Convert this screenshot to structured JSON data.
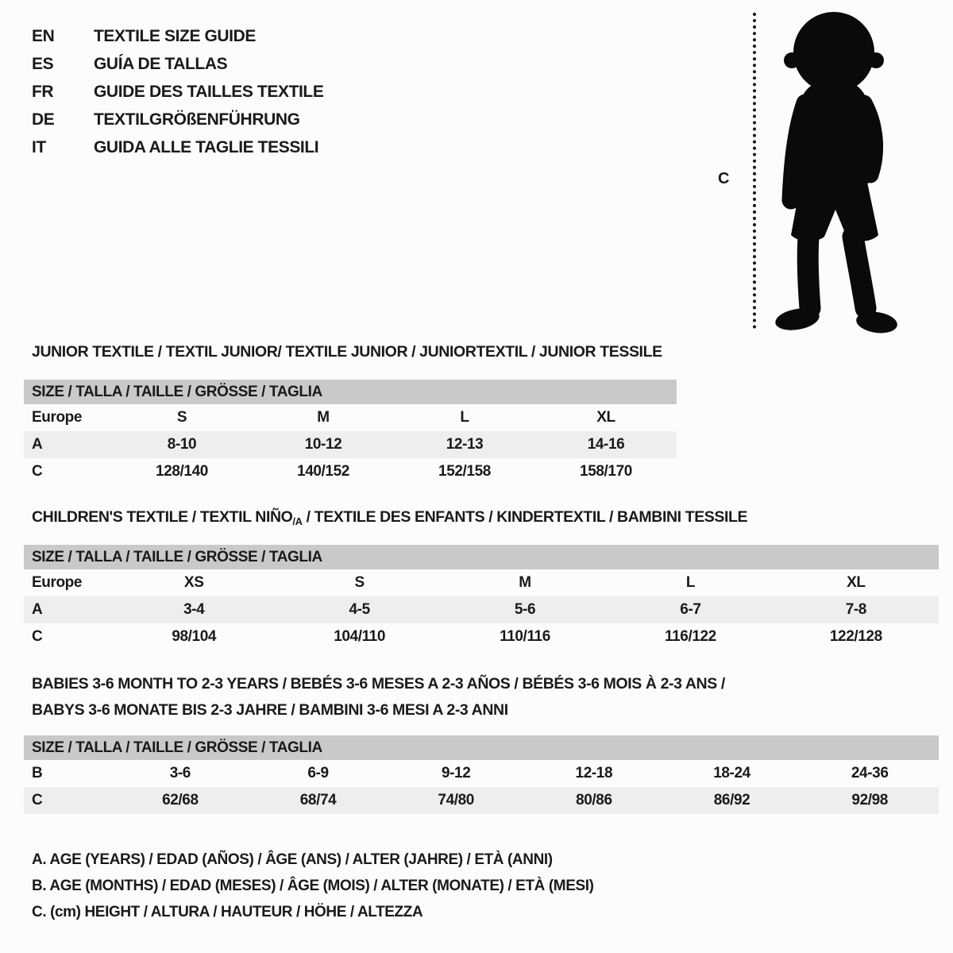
{
  "colors": {
    "header_row_bg": "#c9c9c9",
    "alt_row_bg": "#eeeeee",
    "text": "#1a1a1a",
    "silhouette": "#0a0a0a"
  },
  "language_header": {
    "items": [
      {
        "code": "EN",
        "label": "TEXTILE SIZE GUIDE"
      },
      {
        "code": "ES",
        "label": "GUÍA DE TALLAS"
      },
      {
        "code": "FR",
        "label": "GUIDE DES TAILLES TEXTILE"
      },
      {
        "code": "DE",
        "label": "TEXTILGRÖßENFÜHRUNG"
      },
      {
        "code": "IT",
        "label": "GUIDA ALLE TAGLIE TESSILI"
      }
    ]
  },
  "figure": {
    "measure_label": "C",
    "icon": "toddler-silhouette-icon"
  },
  "sections": [
    {
      "id": "junior",
      "title": "JUNIOR TEXTILE / TEXTIL JUNIOR/ TEXTILE JUNIOR / JUNIORTEXTIL / JUNIOR TESSILE",
      "table": {
        "header": "SIZE / TALLA / TAILLE / GRÖSSE / TAGLIA",
        "rows": [
          [
            "Europe",
            "S",
            "M",
            "L",
            "XL"
          ],
          [
            "A",
            "8-10",
            "10-12",
            "12-13",
            "14-16"
          ],
          [
            "C",
            "128/140",
            "140/152",
            "152/158",
            "158/170"
          ]
        ]
      }
    },
    {
      "id": "children",
      "title_parts": {
        "before": "CHILDREN'S TEXTILE / TEXTIL NIÑO",
        "sub": "/A",
        "after": " / TEXTILE DES ENFANTS / KINDERTEXTIL / BAMBINI TESSILE"
      },
      "table": {
        "header": "SIZE / TALLA / TAILLE / GRÖSSE / TAGLIA",
        "rows": [
          [
            "Europe",
            "XS",
            "S",
            "M",
            "L",
            "XL"
          ],
          [
            "A",
            "3-4",
            "4-5",
            "5-6",
            "6-7",
            "7-8"
          ],
          [
            "C",
            "98/104",
            "104/110",
            "110/116",
            "116/122",
            "122/128"
          ]
        ]
      }
    },
    {
      "id": "babies",
      "title_lines": [
        "BABIES 3-6 MONTH TO 2-3 YEARS / BEBÉS 3-6 MESES A 2-3 AÑOS / BÉBÉS 3-6 MOIS À 2-3 ANS /",
        "BABYS 3-6 MONATE BIS 2-3 JAHRE / BAMBINI 3-6 MESI A 2-3 ANNI"
      ],
      "table": {
        "header": "SIZE / TALLA / TAILLE / GRÖSSE / TAGLIA",
        "rows": [
          [
            "B",
            "3-6",
            "6-9",
            "9-12",
            "12-18",
            "18-24",
            "24-36"
          ],
          [
            "C",
            "62/68",
            "68/74",
            "74/80",
            "80/86",
            "86/92",
            "92/98"
          ]
        ]
      }
    }
  ],
  "legend": {
    "lines": [
      "A. AGE (YEARS) / EDAD (AÑOS) / ÂGE (ANS) / ALTER (JAHRE) / ETÀ (ANNI)",
      "B. AGE (MONTHS) / EDAD (MESES) / ÂGE (MOIS) / ALTER (MONATE) / ETÀ (MESI)",
      "C. (cm) HEIGHT / ALTURA / HAUTEUR / HÖHE / ALTEZZA"
    ]
  }
}
